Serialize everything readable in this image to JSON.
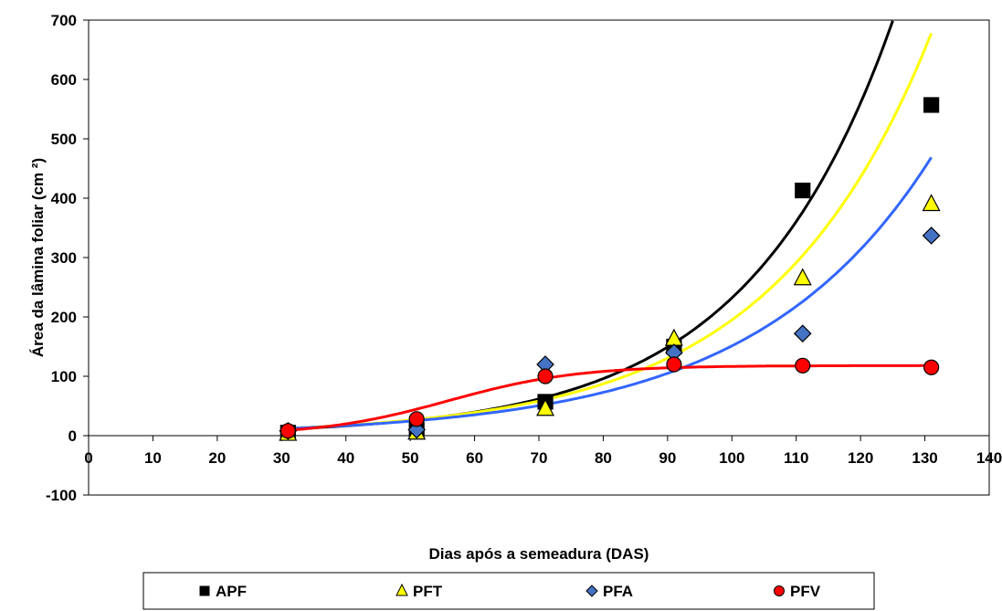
{
  "chart_data": {
    "type": "scatter",
    "xlabel": "Dias após a semeadura (DAS)",
    "ylabel": "Área da lâmina foliar (cm ²)",
    "xlim": [
      0,
      140
    ],
    "ylim": [
      -100,
      700
    ],
    "x_ticks": [
      "0",
      "10",
      "20",
      "30",
      "40",
      "50",
      "60",
      "70",
      "80",
      "90",
      "100",
      "110",
      "120",
      "130",
      "140"
    ],
    "y_ticks": [
      "-100",
      "0",
      "100",
      "200",
      "300",
      "400",
      "500",
      "600",
      "700"
    ],
    "grid": false,
    "legend_position": "bottom",
    "series": [
      {
        "name": "APF",
        "marker": "square",
        "color": "#000000",
        "line_color": "#000000",
        "x": [
          31,
          51,
          71,
          91,
          111,
          131
        ],
        "y": [
          5,
          10,
          57,
          150,
          413,
          557
        ],
        "fit": {
          "type": "exponential",
          "a": 2.82,
          "b": 0.0441,
          "x_range": [
            31,
            125
          ]
        }
      },
      {
        "name": "PFT",
        "marker": "triangle",
        "color": "#ffff00",
        "line_color": "#ffff00",
        "x": [
          31,
          51,
          71,
          91,
          111,
          131
        ],
        "y": [
          3,
          5,
          45,
          163,
          265,
          390
        ],
        "fit": {
          "type": "exponential",
          "a": 3.5,
          "b": 0.0402,
          "x_range": [
            31,
            131
          ]
        }
      },
      {
        "name": "PFA",
        "marker": "diamond",
        "color": "#4472c4",
        "line_color": "#3366ff",
        "x": [
          31,
          51,
          71,
          91,
          111,
          131
        ],
        "y": [
          8,
          10,
          120,
          140,
          172,
          337
        ],
        "fit": {
          "type": "exponential",
          "a": 3.93,
          "b": 0.0365,
          "x_range": [
            31,
            131
          ]
        }
      },
      {
        "name": "PFV",
        "marker": "circle",
        "color": "#ff0000",
        "line_color": "#ff0000",
        "x": [
          31,
          51,
          71,
          91,
          111,
          131
        ],
        "y": [
          8,
          28,
          100,
          120,
          118,
          115
        ],
        "fit": {
          "type": "logistic",
          "K": 118,
          "r": 0.1,
          "x0": 56,
          "x_range": [
            31,
            131
          ]
        }
      }
    ]
  }
}
